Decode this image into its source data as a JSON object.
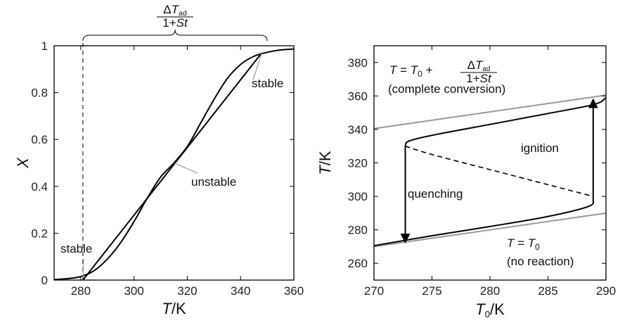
{
  "chart_data": [
    {
      "type": "line",
      "xlim": [
        270,
        360
      ],
      "ylim": [
        0,
        1
      ],
      "x_ticks": [
        "280",
        "300",
        "320",
        "340",
        "360"
      ],
      "y_ticks": [
        "0",
        "0.2",
        "0.4",
        "0.6",
        "0.8",
        "1"
      ],
      "xlabel_var": "T",
      "xlabel_unit": "K",
      "ylabel_var": "X",
      "brace_label": {
        "num_delta": "Δ",
        "num_var": "T",
        "num_sub": "ad",
        "den_pre": "1+",
        "den_var": "St"
      },
      "series": [
        {
          "x": [
            270,
            275,
            280,
            285,
            290,
            295,
            300,
            305,
            310,
            315,
            320,
            325,
            330,
            335,
            340,
            345,
            350,
            355,
            360
          ],
          "y": [
            0.002,
            0.006,
            0.015,
            0.04,
            0.09,
            0.16,
            0.25,
            0.35,
            0.44,
            0.5,
            0.57,
            0.67,
            0.77,
            0.86,
            0.92,
            0.955,
            0.972,
            0.982,
            0.986
          ]
        },
        {
          "x": [
            280.8,
            348
          ],
          "y": [
            0,
            0.97
          ]
        }
      ],
      "annotations": {
        "stable_top": "stable",
        "unstable": "unstable",
        "stable_bottom": "stable",
        "stable_top_point": [
          348,
          0.97
        ],
        "unstable_point": [
          315,
          0.5
        ],
        "stable_bottom_point": [
          280.8,
          0.01
        ],
        "dashed_x": 280.8,
        "brace_span": [
          280.8,
          350
        ]
      }
    },
    {
      "type": "line",
      "xlim": [
        270,
        290
      ],
      "ylim": [
        250,
        390
      ],
      "x_ticks": [
        "270",
        "275",
        "280",
        "285",
        "290"
      ],
      "y_ticks": [
        "260",
        "280",
        "300",
        "320",
        "340",
        "360",
        "380"
      ],
      "xlabel_var": "T",
      "xlabel_sub": "0",
      "xlabel_unit": "K",
      "ylabel_var": "T",
      "ylabel_unit": "K",
      "series": [
        {
          "x": [
            270,
            290
          ],
          "y": [
            340.5,
            360.5
          ]
        },
        {
          "x": [
            270,
            290
          ],
          "y": [
            270,
            290
          ]
        },
        {
          "x": [
            270,
            275,
            280,
            285,
            288.5,
            288.9
          ],
          "y": [
            270.5,
            276.5,
            282,
            288,
            294,
            298
          ]
        },
        {
          "x": [
            272.7,
            275,
            280,
            285,
            288.9
          ],
          "y": [
            330,
            325,
            316,
            307,
            300
          ]
        },
        {
          "x": [
            272.7,
            273,
            275,
            280,
            285,
            289,
            290
          ],
          "y": [
            330,
            333,
            336.5,
            343,
            349.5,
            355,
            359
          ]
        }
      ],
      "arrows": {
        "quenching": {
          "x": 272.7,
          "y_from": 330,
          "y_to": 272.5
        },
        "ignition": {
          "x": 288.9,
          "y_from": 298,
          "y_to": 358
        }
      },
      "annotations": {
        "complete_eq": {
          "lhs": "T",
          "mid": " = ",
          "var": "T",
          "sub": "0",
          "plus": " + "
        },
        "complete_frac": {
          "num_delta": "Δ",
          "num_var": "T",
          "num_sub": "ad",
          "den_pre": "1+",
          "den_var": "St"
        },
        "complete_conversion": "(complete conversion)",
        "no_reaction_eq": {
          "lhs": "T",
          "mid": " = ",
          "var": "T",
          "sub": "0"
        },
        "no_reaction": "(no reaction)",
        "quenching": "quenching",
        "ignition": "ignition"
      }
    }
  ]
}
